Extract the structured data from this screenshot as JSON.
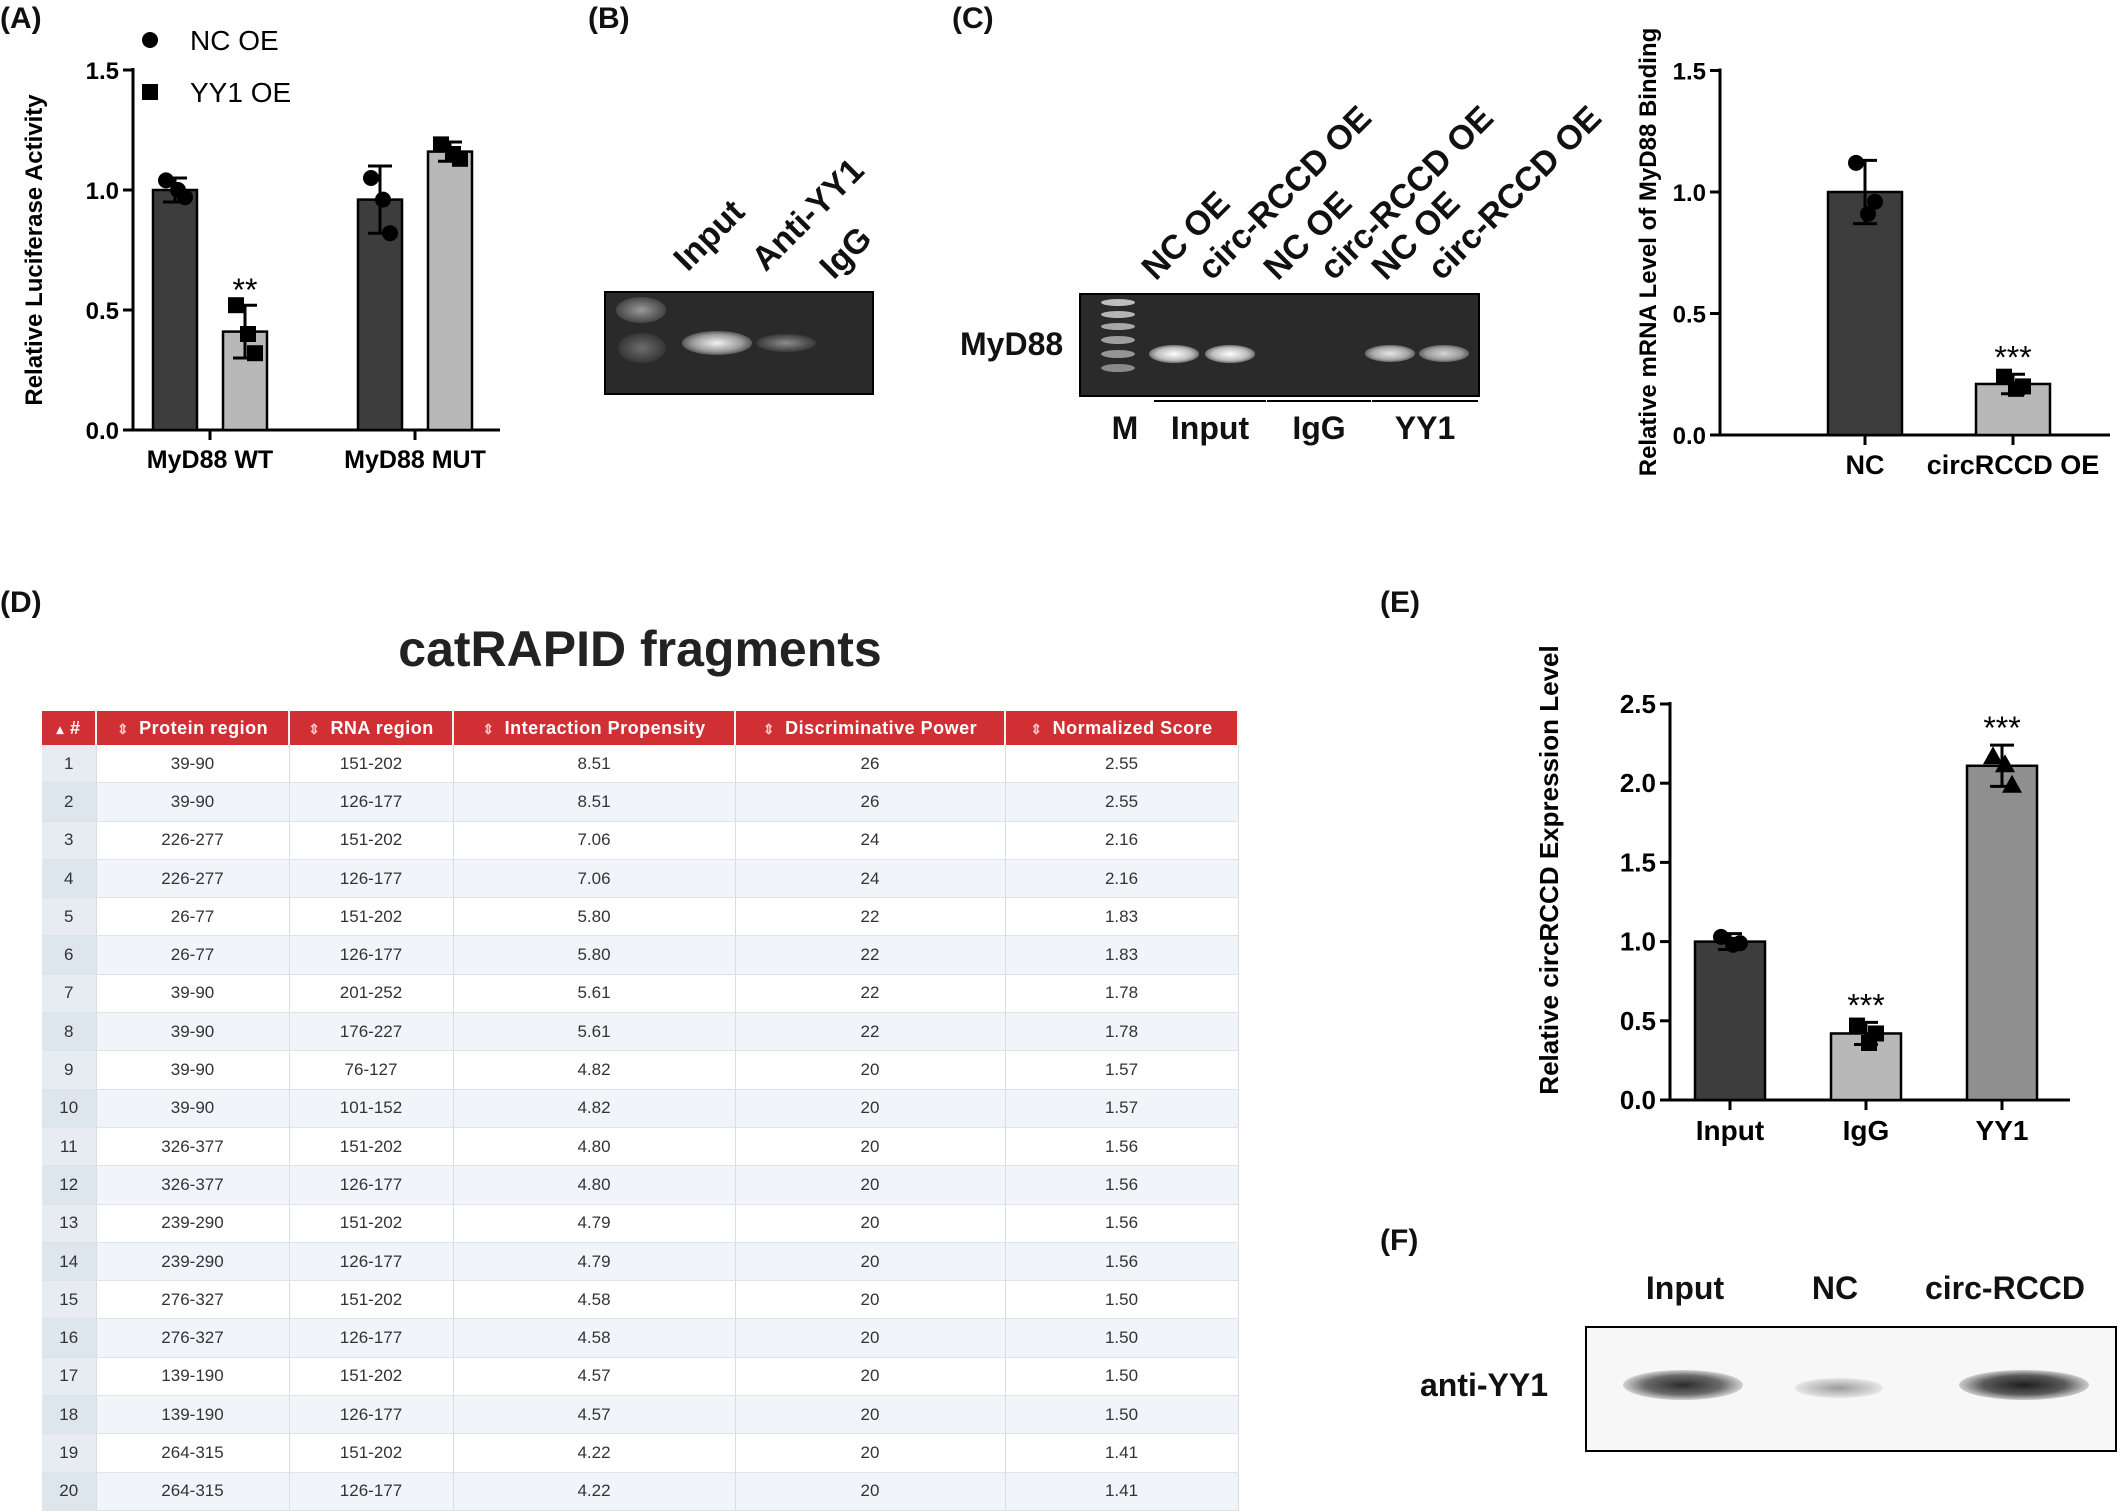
{
  "panels": {
    "A": "(A)",
    "B": "(B)",
    "C": "(C)",
    "D": "(D)",
    "E": "(E)",
    "F": "(F)"
  },
  "chart_data": [
    {
      "id": "A",
      "type": "bar",
      "ylabel": "Relative Luciferase Activity",
      "ylim": [
        0,
        1.5
      ],
      "yticks": [
        "0.0",
        "0.5",
        "1.0",
        "1.5"
      ],
      "categories": [
        "MyD88 WT",
        "MyD88 MUT"
      ],
      "legend": [
        "NC OE",
        "YY1 OE"
      ],
      "series": [
        {
          "name": "NC OE",
          "color": "#3d3d3d",
          "values": [
            1.0,
            0.96
          ],
          "err": [
            0.05,
            0.14
          ],
          "points": [
            [
              1.04,
              0.97,
              1.0
            ],
            [
              1.05,
              0.82,
              0.96
            ]
          ]
        },
        {
          "name": "YY1 OE",
          "color": "#b8b8b8",
          "values": [
            0.41,
            1.16
          ],
          "err": [
            0.11,
            0.04
          ],
          "points": [
            [
              0.52,
              0.32,
              0.4
            ],
            [
              1.19,
              1.13,
              1.15
            ]
          ]
        }
      ],
      "annotations": [
        {
          "category": "MyD88 WT",
          "series": "YY1 OE",
          "text": "**"
        }
      ]
    },
    {
      "id": "C-right",
      "type": "bar",
      "ylabel": "Relative mRNA Level of MyD88 Binding",
      "ylim": [
        0,
        1.5
      ],
      "yticks": [
        "0.0",
        "0.5",
        "1.0",
        "1.5"
      ],
      "categories": [
        "NC",
        "circRCCD OE"
      ],
      "colors": [
        "#3d3d3d",
        "#b8b8b8"
      ],
      "values": [
        1.0,
        0.21
      ],
      "err": [
        0.13,
        0.04
      ],
      "points": [
        [
          1.12,
          0.96,
          0.91
        ],
        [
          0.24,
          0.2,
          0.19
        ]
      ],
      "annotations": [
        {
          "category": "circRCCD OE",
          "text": "***"
        }
      ]
    },
    {
      "id": "E",
      "type": "bar",
      "ylabel": "Relative circRCCD Expression Level",
      "ylim": [
        0,
        2.5
      ],
      "yticks": [
        "0.0",
        "0.5",
        "1.0",
        "1.5",
        "2.0",
        "2.5"
      ],
      "categories": [
        "Input",
        "IgG",
        "YY1"
      ],
      "colors": [
        "#3d3d3d",
        "#b8b8b8",
        "#8f8f8f"
      ],
      "values": [
        1.0,
        0.42,
        2.11
      ],
      "err": [
        0.05,
        0.07,
        0.13
      ],
      "points": [
        [
          1.03,
          0.99,
          0.98
        ],
        [
          0.47,
          0.42,
          0.36
        ],
        [
          2.17,
          1.99,
          2.12
        ]
      ],
      "markers": [
        "circle",
        "square",
        "triangle"
      ],
      "annotations": [
        {
          "category": "IgG",
          "text": "***"
        },
        {
          "category": "YY1",
          "text": "***"
        }
      ]
    },
    {
      "id": "D",
      "type": "table",
      "title": "catRAPID fragments",
      "columns": [
        "#",
        "Protein region",
        "RNA region",
        "Interaction Propensity",
        "Discriminative Power",
        "Normalized Score"
      ],
      "rows": [
        [
          "1",
          "39-90",
          "151-202",
          "8.51",
          "26",
          "2.55"
        ],
        [
          "2",
          "39-90",
          "126-177",
          "8.51",
          "26",
          "2.55"
        ],
        [
          "3",
          "226-277",
          "151-202",
          "7.06",
          "24",
          "2.16"
        ],
        [
          "4",
          "226-277",
          "126-177",
          "7.06",
          "24",
          "2.16"
        ],
        [
          "5",
          "26-77",
          "151-202",
          "5.80",
          "22",
          "1.83"
        ],
        [
          "6",
          "26-77",
          "126-177",
          "5.80",
          "22",
          "1.83"
        ],
        [
          "7",
          "39-90",
          "201-252",
          "5.61",
          "22",
          "1.78"
        ],
        [
          "8",
          "39-90",
          "176-227",
          "5.61",
          "22",
          "1.78"
        ],
        [
          "9",
          "39-90",
          "76-127",
          "4.82",
          "20",
          "1.57"
        ],
        [
          "10",
          "39-90",
          "101-152",
          "4.82",
          "20",
          "1.57"
        ],
        [
          "11",
          "326-377",
          "151-202",
          "4.80",
          "20",
          "1.56"
        ],
        [
          "12",
          "326-377",
          "126-177",
          "4.80",
          "20",
          "1.56"
        ],
        [
          "13",
          "239-290",
          "151-202",
          "4.79",
          "20",
          "1.56"
        ],
        [
          "14",
          "239-290",
          "126-177",
          "4.79",
          "20",
          "1.56"
        ],
        [
          "15",
          "276-327",
          "151-202",
          "4.58",
          "20",
          "1.50"
        ],
        [
          "16",
          "276-327",
          "126-177",
          "4.58",
          "20",
          "1.50"
        ],
        [
          "17",
          "139-190",
          "151-202",
          "4.57",
          "20",
          "1.50"
        ],
        [
          "18",
          "139-190",
          "126-177",
          "4.57",
          "20",
          "1.50"
        ],
        [
          "19",
          "264-315",
          "151-202",
          "4.22",
          "20",
          "1.41"
        ],
        [
          "20",
          "264-315",
          "126-177",
          "4.22",
          "20",
          "1.41"
        ]
      ]
    }
  ],
  "gel_B": {
    "lanes": [
      "Input",
      "Anti-YY1",
      "IgG"
    ]
  },
  "gel_C": {
    "row_label": "MyD88",
    "lanes": [
      "NC OE",
      "circ-RCCD OE",
      "NC OE",
      "circ-RCCD OE",
      "NC OE",
      "circ-RCCD OE"
    ],
    "marker": "M",
    "groups": [
      "Input",
      "IgG",
      "YY1"
    ]
  },
  "blot_F": {
    "lanes": [
      "Input",
      "NC",
      "circ-RCCD"
    ],
    "row_label": "anti-YY1"
  }
}
